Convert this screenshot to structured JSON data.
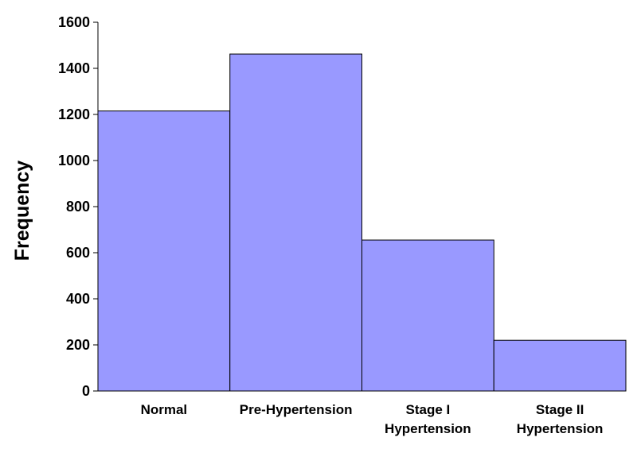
{
  "chart_data": {
    "type": "bar",
    "categories": [
      [
        "Normal"
      ],
      [
        "Pre-Hypertension"
      ],
      [
        "Stage I",
        "Hypertension"
      ],
      [
        "Stage II",
        "Hypertension"
      ]
    ],
    "values": [
      1215,
      1462,
      655,
      220
    ],
    "title": "",
    "xlabel": "",
    "ylabel": "Frequency",
    "ylim": [
      0,
      1600
    ],
    "yticks": [
      0,
      200,
      400,
      600,
      800,
      1000,
      1200,
      1400,
      1600
    ],
    "grid": false,
    "legend": "none",
    "bar_color": "#9999ff",
    "bar_edge_color": "#000000"
  }
}
